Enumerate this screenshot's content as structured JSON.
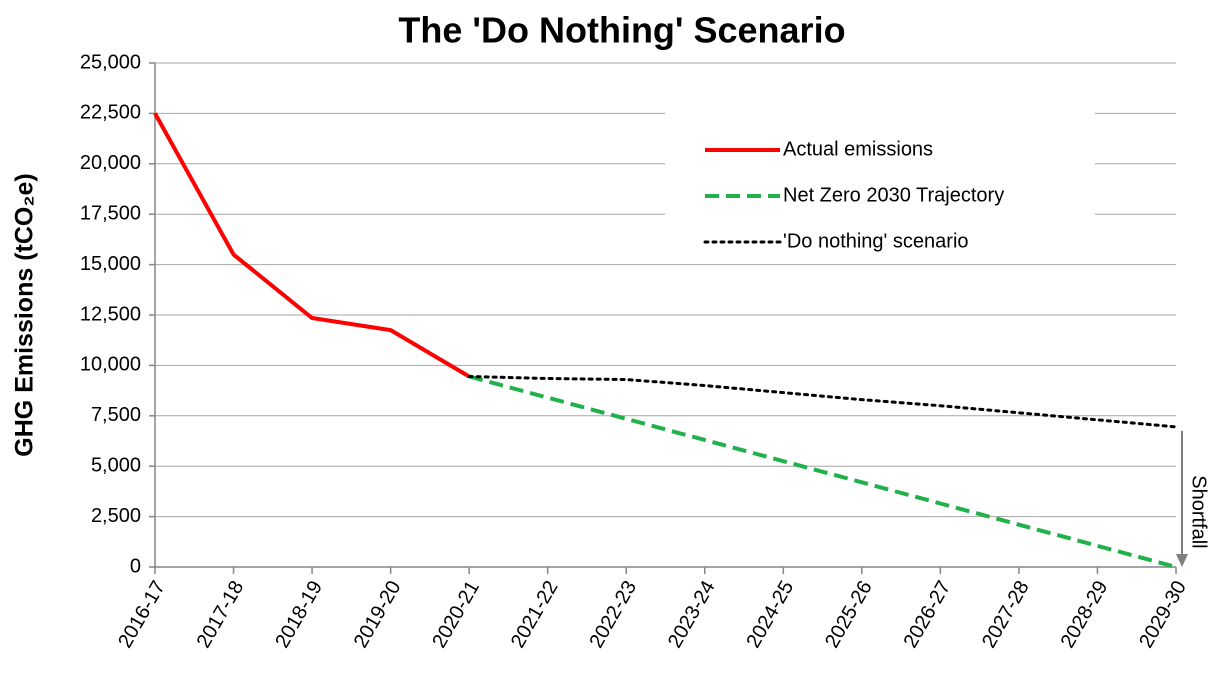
{
  "chart_data": {
    "type": "line",
    "title": "The 'Do Nothing' Scenario",
    "y_label": "GHG Emissions (tCO₂e)",
    "annotation": "Shortfall",
    "categories": [
      "2016-17",
      "2017-18",
      "2018-19",
      "2019-20",
      "2020-21",
      "2021-22",
      "2022-23",
      "2023-24",
      "2024-25",
      "2025-26",
      "2026-27",
      "2027-28",
      "2028-29",
      "2029-30"
    ],
    "series": [
      {
        "name": "Actual emissions",
        "color": "#ff0000",
        "style": "solid",
        "values": [
          22500,
          15500,
          12350,
          11750,
          9450,
          null,
          null,
          null,
          null,
          null,
          null,
          null,
          null,
          null
        ]
      },
      {
        "name": "Net Zero 2030 Trajectory",
        "color": "#21b14b",
        "style": "dashed",
        "values": [
          null,
          null,
          null,
          null,
          9450,
          8400,
          7350,
          6300,
          5250,
          4200,
          3150,
          2100,
          1050,
          0
        ]
      },
      {
        "name": "'Do nothing' scenario",
        "color": "#000000",
        "style": "dotted",
        "values": [
          null,
          null,
          null,
          null,
          9450,
          9350,
          9300,
          9000,
          8650,
          8300,
          8000,
          7650,
          7300,
          6950
        ]
      }
    ],
    "ylim": [
      0,
      25000
    ],
    "yticks": [
      0,
      {
        "value": 2500,
        "label": "2,500"
      },
      {
        "value": 5000,
        "label": "5,000"
      },
      {
        "value": 7500,
        "label": "7,500"
      },
      {
        "value": 10000,
        "label": "10,000"
      },
      {
        "value": 12500,
        "label": "12,500"
      },
      {
        "value": 15000,
        "label": "15,000"
      },
      {
        "value": 17500,
        "label": "17,500"
      },
      {
        "value": 20000,
        "label": "20,000"
      },
      {
        "value": 22500,
        "label": "22,500"
      },
      {
        "value": 25000,
        "label": "25,000"
      }
    ],
    "grid": true,
    "legend": "upper right"
  }
}
